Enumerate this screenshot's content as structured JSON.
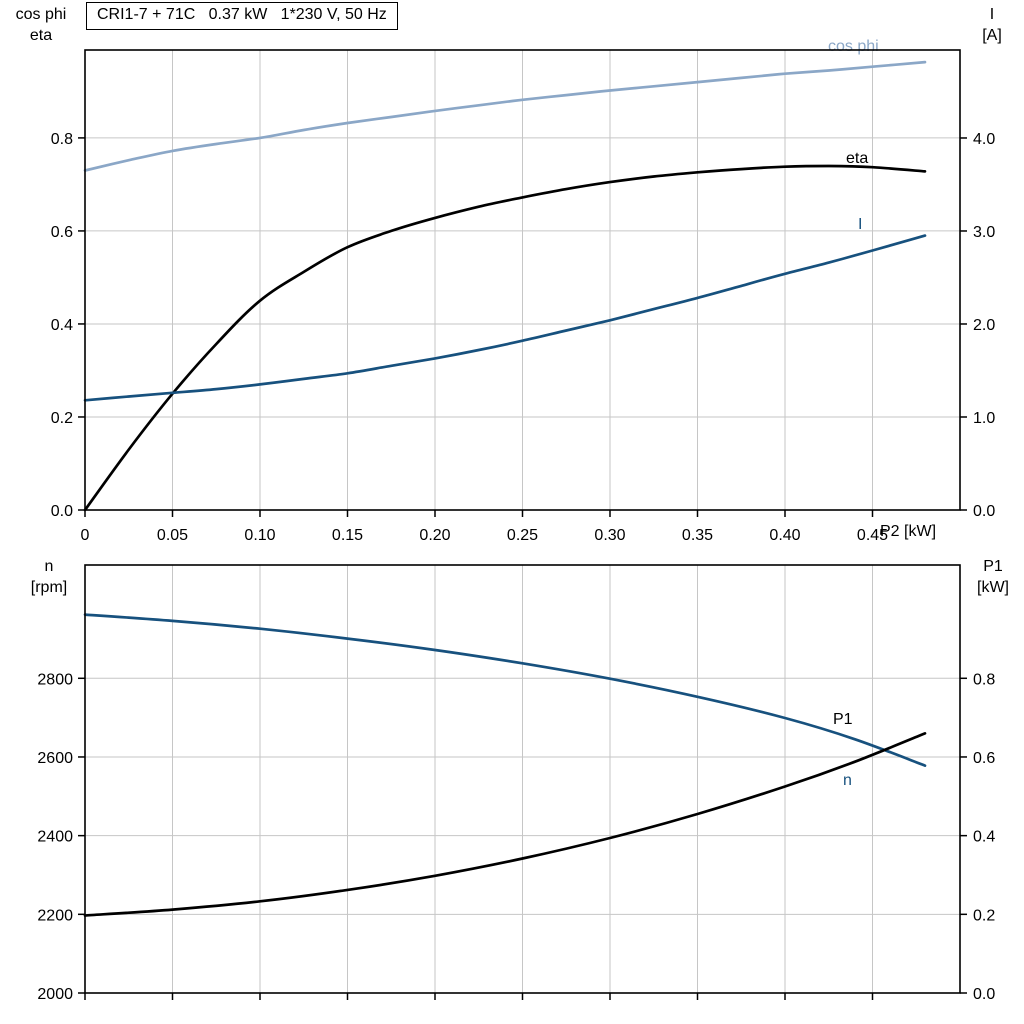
{
  "title": "CRI1-7 + 71C   0.37 kW   1*230 V, 50 Hz",
  "colors": {
    "light_blue": "#8ba7c7",
    "dark_blue": "#17517e",
    "black": "#000000",
    "grid": "#c6c6c6",
    "frame": "#000000"
  },
  "chart_data": [
    {
      "type": "line",
      "title": "CRI1-7 + 71C   0.37 kW   1*230 V, 50 Hz",
      "grid": true,
      "x_axis": {
        "label": "P2 [kW]",
        "lim": [
          0,
          0.5
        ],
        "ticks": [
          0,
          0.05,
          0.1,
          0.15,
          0.2,
          0.25,
          0.3,
          0.35,
          0.4,
          0.45
        ],
        "tick_labels": [
          "0",
          "0.05",
          "0.10",
          "0.15",
          "0.20",
          "0.25",
          "0.30",
          "0.35",
          "0.40",
          "0.45"
        ],
        "show_tick_labels": true
      },
      "left_axis": {
        "label1": "cos phi",
        "label2": "eta",
        "lim": [
          0,
          0.989
        ],
        "ticks": [
          0,
          0.2,
          0.4,
          0.6,
          0.8
        ],
        "tick_labels": [
          "0.0",
          "0.2",
          "0.4",
          "0.6",
          "0.8"
        ]
      },
      "right_axis": {
        "label1": "I",
        "label2": "[A]",
        "lim": [
          0,
          4.946
        ],
        "ticks": [
          0,
          1,
          2,
          3,
          4
        ],
        "tick_labels": [
          "0.0",
          "1.0",
          "2.0",
          "3.0",
          "4.0"
        ]
      },
      "series": [
        {
          "name": "cos phi",
          "axis": "left",
          "color": "#8ba7c7",
          "x": [
            0,
            0.025,
            0.05,
            0.075,
            0.1,
            0.125,
            0.15,
            0.175,
            0.2,
            0.225,
            0.25,
            0.275,
            0.3,
            0.325,
            0.35,
            0.375,
            0.4,
            0.425,
            0.45,
            0.48
          ],
          "y": [
            0.73,
            0.752,
            0.772,
            0.787,
            0.8,
            0.817,
            0.832,
            0.845,
            0.858,
            0.87,
            0.882,
            0.892,
            0.902,
            0.911,
            0.92,
            0.929,
            0.938,
            0.945,
            0.953,
            0.963
          ]
        },
        {
          "name": "eta",
          "axis": "left",
          "color": "#000000",
          "x": [
            0,
            0.025,
            0.05,
            0.075,
            0.1,
            0.125,
            0.15,
            0.175,
            0.2,
            0.225,
            0.25,
            0.275,
            0.3,
            0.325,
            0.35,
            0.375,
            0.4,
            0.425,
            0.45,
            0.48
          ],
          "y": [
            0,
            0.13,
            0.25,
            0.357,
            0.45,
            0.512,
            0.565,
            0.6,
            0.628,
            0.652,
            0.672,
            0.69,
            0.705,
            0.717,
            0.726,
            0.733,
            0.738,
            0.7395,
            0.737,
            0.728
          ]
        },
        {
          "name": "I",
          "axis": "right",
          "color": "#17517e",
          "x": [
            0,
            0.025,
            0.05,
            0.075,
            0.1,
            0.125,
            0.15,
            0.175,
            0.2,
            0.225,
            0.25,
            0.275,
            0.3,
            0.325,
            0.35,
            0.375,
            0.4,
            0.425,
            0.45,
            0.48
          ],
          "y": [
            1.18,
            1.22,
            1.26,
            1.3,
            1.35,
            1.41,
            1.47,
            1.55,
            1.63,
            1.72,
            1.82,
            1.93,
            2.04,
            2.16,
            2.28,
            2.41,
            2.54,
            2.66,
            2.79,
            2.95
          ]
        }
      ]
    },
    {
      "type": "line",
      "grid": true,
      "x_axis": {
        "label": "",
        "lim": [
          0,
          0.5
        ],
        "ticks": [
          0,
          0.05,
          0.1,
          0.15,
          0.2,
          0.25,
          0.3,
          0.35,
          0.4,
          0.45
        ],
        "tick_labels": [],
        "show_tick_labels": false
      },
      "left_axis": {
        "label1": "n",
        "label2": "[rpm]",
        "lim": [
          2000,
          3088
        ],
        "ticks": [
          2000,
          2200,
          2400,
          2600,
          2800
        ],
        "tick_labels": [
          "2000",
          "2200",
          "2400",
          "2600",
          "2800"
        ]
      },
      "right_axis": {
        "label1": "P1",
        "label2": "[kW]",
        "lim": [
          0,
          1.088
        ],
        "ticks": [
          0,
          0.2,
          0.4,
          0.6,
          0.8
        ],
        "tick_labels": [
          "0.0",
          "0.2",
          "0.4",
          "0.6",
          "0.8"
        ]
      },
      "series": [
        {
          "name": "n",
          "axis": "left",
          "color": "#17517e",
          "x": [
            0,
            0.05,
            0.1,
            0.15,
            0.2,
            0.25,
            0.3,
            0.35,
            0.4,
            0.44,
            0.48
          ],
          "y": [
            2962,
            2946,
            2926,
            2901,
            2872,
            2838,
            2799,
            2753,
            2699,
            2645,
            2578
          ]
        },
        {
          "name": "P1",
          "axis": "right",
          "color": "#000000",
          "x": [
            0,
            0.05,
            0.1,
            0.15,
            0.2,
            0.25,
            0.3,
            0.35,
            0.4,
            0.44,
            0.48
          ],
          "y": [
            0.197,
            0.212,
            0.233,
            0.262,
            0.298,
            0.342,
            0.394,
            0.455,
            0.525,
            0.588,
            0.66
          ]
        }
      ]
    }
  ]
}
